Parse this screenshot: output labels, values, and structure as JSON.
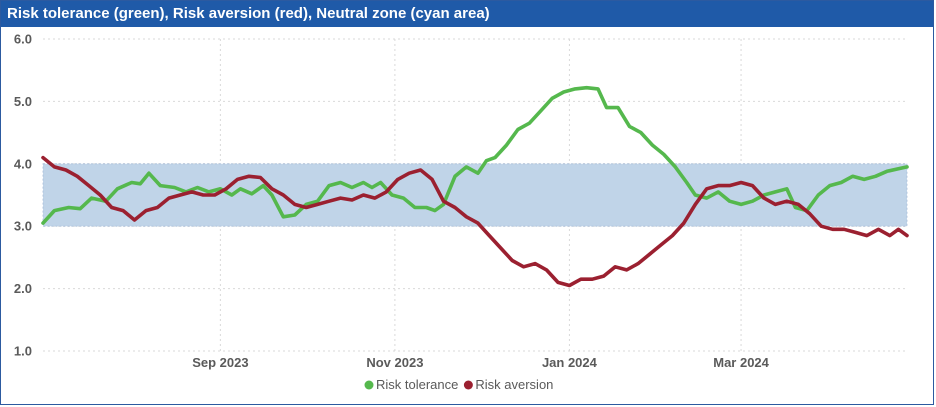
{
  "window": {
    "title": "Risk tolerance (green), Risk aversion (red), Neutral zone (cyan area)"
  },
  "chart_data": {
    "type": "line",
    "title": "Risk tolerance (green), Risk aversion (red), Neutral zone (cyan area)",
    "xlabel": "",
    "ylabel": "",
    "x_range": [
      "2023-07-01",
      "2024-04-28"
    ],
    "ylim": [
      1.0,
      6.0
    ],
    "y_ticks": [
      "1.0",
      "2.0",
      "3.0",
      "4.0",
      "5.0",
      "6.0"
    ],
    "x_ticks": [
      {
        "date": "2023-09-01",
        "label": "Sep 2023"
      },
      {
        "date": "2023-11-01",
        "label": "Nov 2023"
      },
      {
        "date": "2024-01-01",
        "label": "Jan 2024"
      },
      {
        "date": "2024-03-01",
        "label": "Mar 2024"
      }
    ],
    "grid": true,
    "legend_position": "bottom",
    "neutral_zone": {
      "y_from": 3.0,
      "y_to": 4.0,
      "color": "#c0d4e8"
    },
    "series": [
      {
        "name": "Risk tolerance",
        "color": "#55b84d",
        "points": [
          [
            "2023-07-01",
            3.05
          ],
          [
            "2023-07-05",
            3.25
          ],
          [
            "2023-07-10",
            3.3
          ],
          [
            "2023-07-14",
            3.28
          ],
          [
            "2023-07-18",
            3.45
          ],
          [
            "2023-07-23",
            3.4
          ],
          [
            "2023-07-27",
            3.6
          ],
          [
            "2023-08-01",
            3.7
          ],
          [
            "2023-08-04",
            3.68
          ],
          [
            "2023-08-07",
            3.85
          ],
          [
            "2023-08-11",
            3.65
          ],
          [
            "2023-08-16",
            3.62
          ],
          [
            "2023-08-20",
            3.55
          ],
          [
            "2023-08-24",
            3.62
          ],
          [
            "2023-08-28",
            3.55
          ],
          [
            "2023-09-01",
            3.6
          ],
          [
            "2023-09-05",
            3.5
          ],
          [
            "2023-09-08",
            3.6
          ],
          [
            "2023-09-12",
            3.52
          ],
          [
            "2023-09-16",
            3.65
          ],
          [
            "2023-09-19",
            3.5
          ],
          [
            "2023-09-23",
            3.15
          ],
          [
            "2023-09-27",
            3.18
          ],
          [
            "2023-10-01",
            3.35
          ],
          [
            "2023-10-05",
            3.4
          ],
          [
            "2023-10-09",
            3.65
          ],
          [
            "2023-10-13",
            3.7
          ],
          [
            "2023-10-17",
            3.62
          ],
          [
            "2023-10-21",
            3.7
          ],
          [
            "2023-10-24",
            3.62
          ],
          [
            "2023-10-27",
            3.7
          ],
          [
            "2023-10-31",
            3.5
          ],
          [
            "2023-11-04",
            3.45
          ],
          [
            "2023-11-08",
            3.3
          ],
          [
            "2023-11-12",
            3.3
          ],
          [
            "2023-11-15",
            3.25
          ],
          [
            "2023-11-18",
            3.35
          ],
          [
            "2023-11-22",
            3.8
          ],
          [
            "2023-11-26",
            3.95
          ],
          [
            "2023-11-30",
            3.85
          ],
          [
            "2023-12-03",
            4.05
          ],
          [
            "2023-12-06",
            4.1
          ],
          [
            "2023-12-10",
            4.3
          ],
          [
            "2023-12-14",
            4.55
          ],
          [
            "2023-12-18",
            4.65
          ],
          [
            "2023-12-22",
            4.85
          ],
          [
            "2023-12-26",
            5.05
          ],
          [
            "2023-12-30",
            5.15
          ],
          [
            "2024-01-03",
            5.2
          ],
          [
            "2024-01-07",
            5.22
          ],
          [
            "2024-01-11",
            5.2
          ],
          [
            "2024-01-14",
            4.9
          ],
          [
            "2024-01-18",
            4.9
          ],
          [
            "2024-01-22",
            4.6
          ],
          [
            "2024-01-26",
            4.5
          ],
          [
            "2024-01-30",
            4.3
          ],
          [
            "2024-02-03",
            4.15
          ],
          [
            "2024-02-07",
            3.95
          ],
          [
            "2024-02-11",
            3.7
          ],
          [
            "2024-02-14",
            3.5
          ],
          [
            "2024-02-18",
            3.45
          ],
          [
            "2024-02-22",
            3.55
          ],
          [
            "2024-02-26",
            3.4
          ],
          [
            "2024-03-01",
            3.35
          ],
          [
            "2024-03-05",
            3.4
          ],
          [
            "2024-03-09",
            3.5
          ],
          [
            "2024-03-13",
            3.55
          ],
          [
            "2024-03-17",
            3.6
          ],
          [
            "2024-03-20",
            3.3
          ],
          [
            "2024-03-24",
            3.25
          ],
          [
            "2024-03-28",
            3.5
          ],
          [
            "2024-04-01",
            3.65
          ],
          [
            "2024-04-05",
            3.7
          ],
          [
            "2024-04-09",
            3.8
          ],
          [
            "2024-04-13",
            3.75
          ],
          [
            "2024-04-17",
            3.8
          ],
          [
            "2024-04-21",
            3.88
          ],
          [
            "2024-04-25",
            3.92
          ],
          [
            "2024-04-28",
            3.95
          ]
        ]
      },
      {
        "name": "Risk aversion",
        "color": "#9b2030",
        "points": [
          [
            "2023-07-01",
            4.1
          ],
          [
            "2023-07-05",
            3.95
          ],
          [
            "2023-07-09",
            3.9
          ],
          [
            "2023-07-13",
            3.8
          ],
          [
            "2023-07-17",
            3.65
          ],
          [
            "2023-07-21",
            3.5
          ],
          [
            "2023-07-25",
            3.3
          ],
          [
            "2023-07-29",
            3.25
          ],
          [
            "2023-08-02",
            3.1
          ],
          [
            "2023-08-06",
            3.25
          ],
          [
            "2023-08-10",
            3.3
          ],
          [
            "2023-08-14",
            3.45
          ],
          [
            "2023-08-18",
            3.5
          ],
          [
            "2023-08-22",
            3.55
          ],
          [
            "2023-08-26",
            3.5
          ],
          [
            "2023-08-30",
            3.5
          ],
          [
            "2023-09-03",
            3.6
          ],
          [
            "2023-09-07",
            3.75
          ],
          [
            "2023-09-11",
            3.8
          ],
          [
            "2023-09-15",
            3.78
          ],
          [
            "2023-09-19",
            3.6
          ],
          [
            "2023-09-23",
            3.5
          ],
          [
            "2023-09-27",
            3.35
          ],
          [
            "2023-10-01",
            3.3
          ],
          [
            "2023-10-05",
            3.35
          ],
          [
            "2023-10-09",
            3.4
          ],
          [
            "2023-10-13",
            3.45
          ],
          [
            "2023-10-17",
            3.42
          ],
          [
            "2023-10-21",
            3.5
          ],
          [
            "2023-10-25",
            3.45
          ],
          [
            "2023-10-29",
            3.55
          ],
          [
            "2023-11-02",
            3.75
          ],
          [
            "2023-11-06",
            3.85
          ],
          [
            "2023-11-10",
            3.9
          ],
          [
            "2023-11-14",
            3.75
          ],
          [
            "2023-11-18",
            3.4
          ],
          [
            "2023-11-22",
            3.3
          ],
          [
            "2023-11-26",
            3.15
          ],
          [
            "2023-11-30",
            3.05
          ],
          [
            "2023-12-04",
            2.85
          ],
          [
            "2023-12-08",
            2.65
          ],
          [
            "2023-12-12",
            2.45
          ],
          [
            "2023-12-16",
            2.35
          ],
          [
            "2023-12-20",
            2.4
          ],
          [
            "2023-12-24",
            2.3
          ],
          [
            "2023-12-28",
            2.1
          ],
          [
            "2024-01-01",
            2.05
          ],
          [
            "2024-01-05",
            2.15
          ],
          [
            "2024-01-09",
            2.15
          ],
          [
            "2024-01-13",
            2.2
          ],
          [
            "2024-01-17",
            2.35
          ],
          [
            "2024-01-21",
            2.3
          ],
          [
            "2024-01-25",
            2.4
          ],
          [
            "2024-01-29",
            2.55
          ],
          [
            "2024-02-02",
            2.7
          ],
          [
            "2024-02-06",
            2.85
          ],
          [
            "2024-02-10",
            3.05
          ],
          [
            "2024-02-14",
            3.35
          ],
          [
            "2024-02-18",
            3.6
          ],
          [
            "2024-02-22",
            3.65
          ],
          [
            "2024-02-26",
            3.65
          ],
          [
            "2024-03-01",
            3.7
          ],
          [
            "2024-03-05",
            3.65
          ],
          [
            "2024-03-09",
            3.45
          ],
          [
            "2024-03-13",
            3.35
          ],
          [
            "2024-03-17",
            3.4
          ],
          [
            "2024-03-21",
            3.35
          ],
          [
            "2024-03-25",
            3.2
          ],
          [
            "2024-03-29",
            3.0
          ],
          [
            "2024-04-02",
            2.95
          ],
          [
            "2024-04-06",
            2.95
          ],
          [
            "2024-04-10",
            2.9
          ],
          [
            "2024-04-14",
            2.85
          ],
          [
            "2024-04-18",
            2.95
          ],
          [
            "2024-04-22",
            2.85
          ],
          [
            "2024-04-25",
            2.95
          ],
          [
            "2024-04-28",
            2.85
          ]
        ]
      }
    ]
  }
}
